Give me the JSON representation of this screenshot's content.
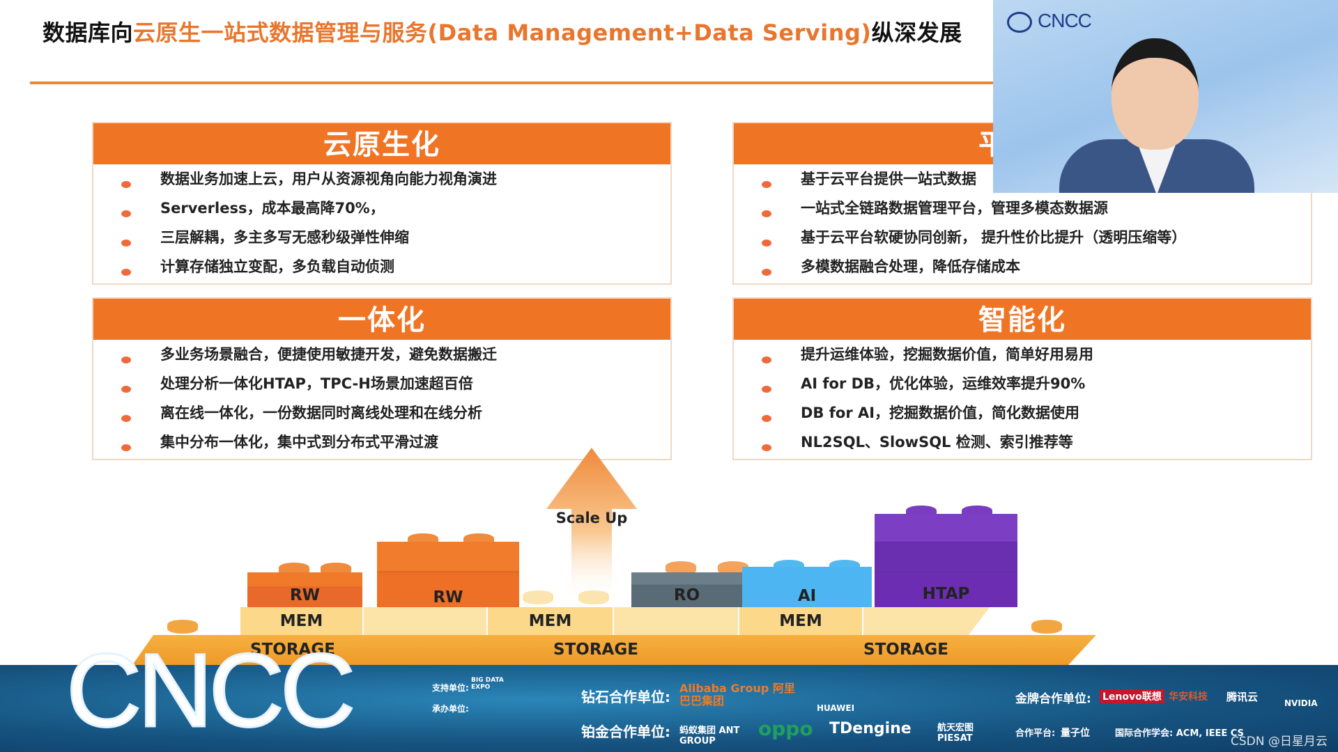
{
  "slide": {
    "title_prefix": "数据库向",
    "title_highlight": "云原生一站式数据管理与服务(Data Management+Data Serving)",
    "title_suffix": "纵深发展",
    "accent_color": "#ef7424",
    "panels": [
      {
        "heading": "云原生化",
        "bullets": [
          "数据业务加速上云，用户从资源视角向能力视角演进",
          "Serverless，成本最高降70%，",
          "三层解耦，多主多写无感秒级弹性伸缩",
          "计算存储独立变配，多负载自动侦测"
        ]
      },
      {
        "heading": "平台化",
        "bullets": [
          "基于云平台提供一站式数据",
          "一站式全链路数据管理平台，管理多模态数据源",
          "基于云平台软硬协同创新， 提升性价比提升（透明压缩等）",
          "多模数据融合处理，降低存储成本"
        ]
      },
      {
        "heading": "一体化",
        "bullets": [
          "多业务场景融合，便捷使用敏捷开发，避免数据搬迁",
          "处理分析一体化HTAP，TPC-H场景加速超百倍",
          "离在线一体化，一份数据同时离线处理和在线分析",
          "集中分布一体化，集中式到分布式平滑过渡"
        ]
      },
      {
        "heading": "智能化",
        "bullets": [
          "提升运维体验，挖掘数据价值，简单好用易用",
          "AI for DB，优化体验，运维效率提升90%",
          "DB for AI，挖掘数据价值，简化数据使用",
          "NL2SQL、SlowSQL 检测、索引推荐等"
        ]
      }
    ],
    "diagram": {
      "scale_up": "Scale Up",
      "rw1": "RW",
      "rw2": "RW",
      "ro": "RO",
      "ai": "AI",
      "htap": "HTAP",
      "mem": "MEM",
      "storage": "STORAGE"
    }
  },
  "webcam": {
    "logo": "CNCC"
  },
  "footer": {
    "logo": "CNCC",
    "support_label": "支持单位:",
    "host_label": "承办单位:",
    "support_logo": "BIG DATA EXPO",
    "diamond_label": "钻石合作单位:",
    "diamond": [
      "Alibaba Group 阿里巴巴集团",
      "HUAWEI"
    ],
    "platinum_label": "铂金合作单位:",
    "platinum": [
      "蚂蚁集团 ANT GROUP",
      "oppo",
      "TDengine",
      "航天宏图 PIESAT"
    ],
    "gold_label": "金牌合作单位:",
    "gold": [
      "Lenovo联想",
      "华安科技",
      "腾讯云",
      "NVIDIA"
    ],
    "platform_label": "合作平台:",
    "platform": "量子位",
    "intl_label": "国际合作学会: ACM, IEEE CS",
    "watermark": "CSDN @日星月云"
  }
}
